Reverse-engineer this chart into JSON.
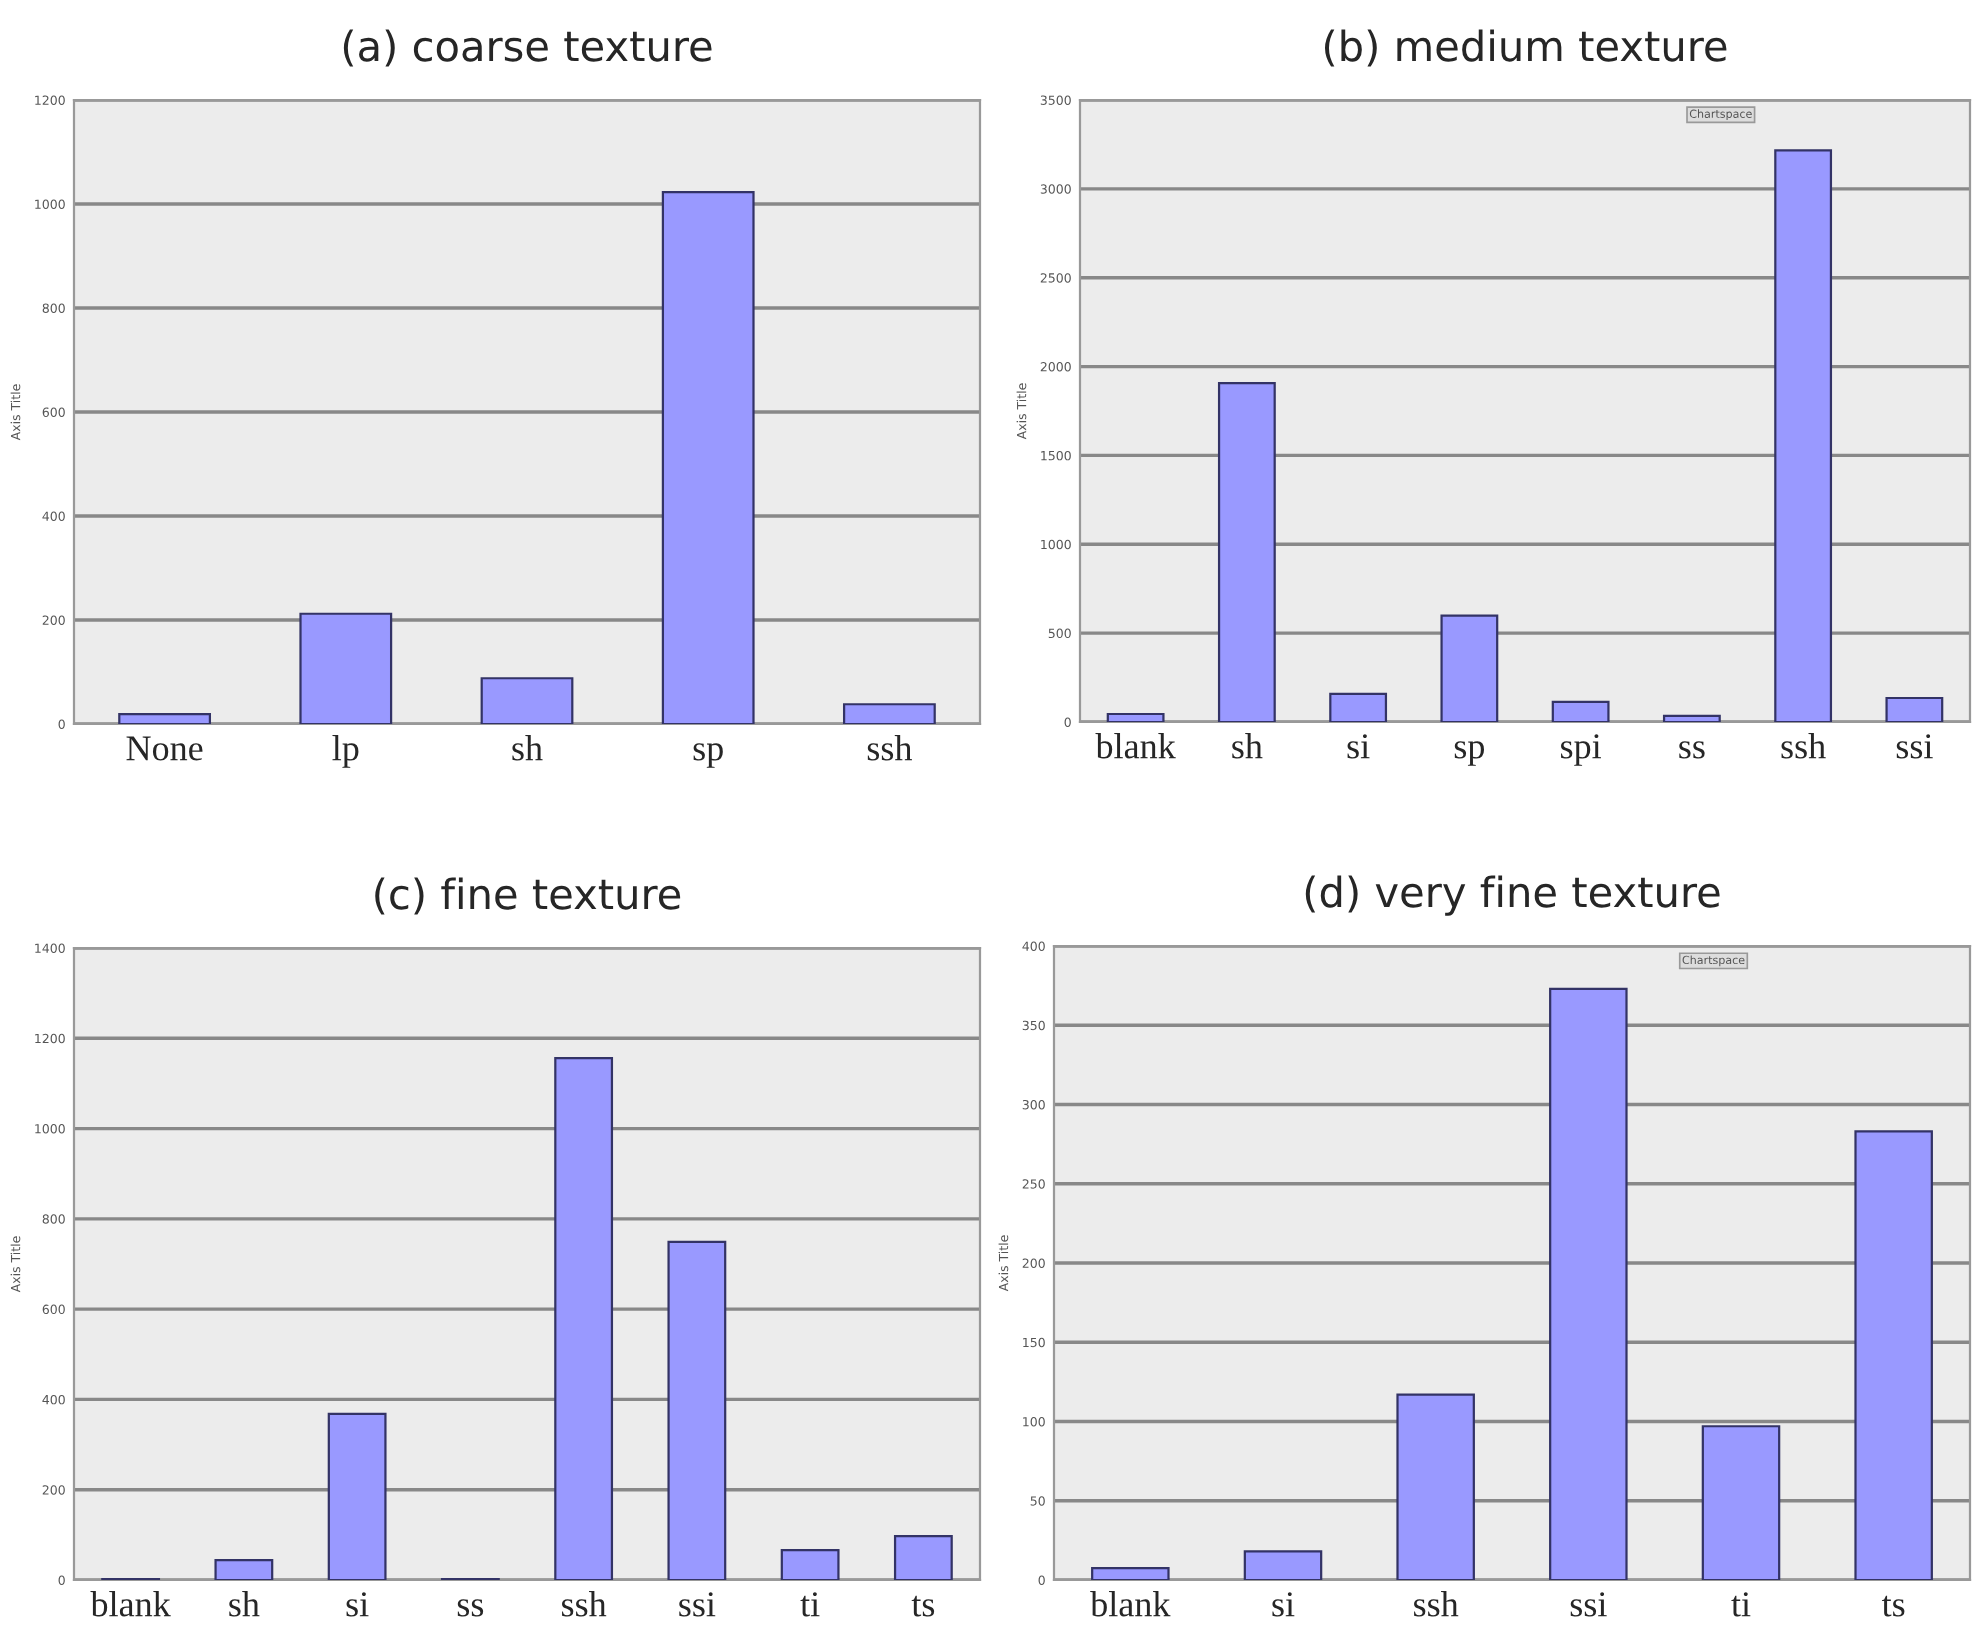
{
  "chart_data": [
    {
      "type": "bar",
      "title": "(a) coarse texture",
      "ylabel": "Axis Title",
      "categories": [
        "None",
        "lp",
        "sh",
        "sp",
        "ssh"
      ],
      "values": [
        19,
        212,
        88,
        1023,
        38
      ],
      "color": "#9999ff",
      "ylim": [
        0,
        1200
      ],
      "yticks": [
        0,
        200,
        400,
        600,
        800,
        1000,
        1200
      ],
      "grid": "y"
    },
    {
      "type": "bar",
      "title": "(b) medium texture",
      "ylabel": "Axis Title",
      "annotations": [
        "Chartspace"
      ],
      "categories": [
        "blank",
        "sh",
        "si",
        "sp",
        "spi",
        "ss",
        "ssh",
        "ssi"
      ],
      "values": [
        45,
        1907,
        158,
        598,
        113,
        34,
        3217,
        135
      ],
      "color": "#9999ff",
      "ylim": [
        0,
        3500
      ],
      "yticks": [
        0,
        500,
        1000,
        1500,
        2000,
        2500,
        3000,
        3500
      ],
      "grid": "y"
    },
    {
      "type": "bar",
      "title": "(c) fine texture",
      "ylabel": "Axis Title",
      "categories": [
        "blank",
        "sh",
        "si",
        "ss",
        "ssh",
        "ssi",
        "ti",
        "ts"
      ],
      "values": [
        2,
        44,
        368,
        2,
        1156,
        749,
        66,
        97
      ],
      "color": "#9999ff",
      "ylim": [
        0,
        1400
      ],
      "yticks": [
        0,
        200,
        400,
        600,
        800,
        1000,
        1200,
        1400
      ],
      "grid": "y"
    },
    {
      "type": "bar",
      "title": "(d) very fine texture",
      "ylabel": "Axis Title",
      "annotations": [
        "Chartspace"
      ],
      "categories": [
        "blank",
        "si",
        "ssh",
        "ssi",
        "ti",
        "ts"
      ],
      "values": [
        7.5,
        18,
        117,
        373,
        97,
        283
      ],
      "color": "#9999ff",
      "ylim": [
        0,
        400
      ],
      "yticks": [
        0,
        50,
        100,
        150,
        200,
        250,
        300,
        350,
        400
      ],
      "grid": "y"
    }
  ]
}
